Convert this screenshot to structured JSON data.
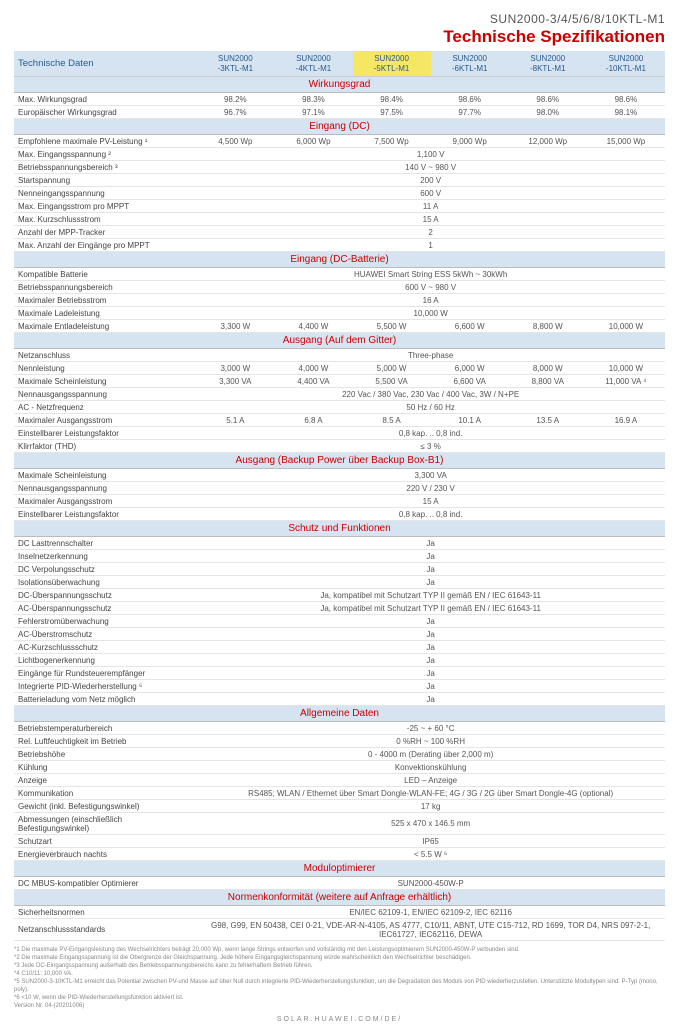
{
  "modelId": "SUN2000-3/4/5/6/8/10KTL-M1",
  "mainTitle": "Technische Spezifikationen",
  "headerLabel": "Technische Daten",
  "highlightedCol": 2,
  "columns": [
    {
      "l1": "SUN2000",
      "l2": "-3KTL-M1"
    },
    {
      "l1": "SUN2000",
      "l2": "-4KTL-M1"
    },
    {
      "l1": "SUN2000",
      "l2": "-5KTL-M1"
    },
    {
      "l1": "SUN2000",
      "l2": "-6KTL-M1"
    },
    {
      "l1": "SUN2000",
      "l2": "-8KTL-M1"
    },
    {
      "l1": "SUN2000",
      "l2": "-10KTL-M1"
    }
  ],
  "sections": [
    {
      "title": "Wirkungsgrad",
      "rows": [
        {
          "label": "Max. Wirkungsgrad",
          "vals": [
            "98.2%",
            "98.3%",
            "98.4%",
            "98.6%",
            "98.6%",
            "98.6%"
          ]
        },
        {
          "label": "Europäischer Wirkungsgrad",
          "vals": [
            "96.7%",
            "97.1%",
            "97.5%",
            "97.7%",
            "98.0%",
            "98.1%"
          ]
        }
      ]
    },
    {
      "title": "Eingang (DC)",
      "rows": [
        {
          "label": "Empfohlene maximale PV-Leistung ¹",
          "vals": [
            "4,500 Wp",
            "6,000 Wp",
            "7,500 Wp",
            "9,000 Wp",
            "12,000 Wp",
            "15,000 Wp"
          ]
        },
        {
          "label": "Max. Eingangsspannung ²",
          "span": "1,100 V"
        },
        {
          "label": "Betriebsspannungsbereich ³",
          "span": "140 V ~ 980 V"
        },
        {
          "label": "Startspannung",
          "span": "200 V"
        },
        {
          "label": "Nenneingangsspannung",
          "span": "600 V"
        },
        {
          "label": "Max. Eingangsstrom pro MPPT",
          "span": "11 A"
        },
        {
          "label": "Max. Kurzschlussstrom",
          "span": "15 A"
        },
        {
          "label": "Anzahl der MPP-Tracker",
          "span": "2"
        },
        {
          "label": "Max. Anzahl der Eingänge pro MPPT",
          "span": "1"
        }
      ]
    },
    {
      "title": "Eingang (DC-Batterie)",
      "rows": [
        {
          "label": "Kompatible Batterie",
          "span": "HUAWEI Smart String ESS 5kWh ~ 30kWh"
        },
        {
          "label": "Betriebsspannungsbereich",
          "span": "600 V ~ 980 V"
        },
        {
          "label": "Maximaler Betriebsstrom",
          "span": "16 A"
        },
        {
          "label": "Maximale Ladeleistung",
          "span": "10,000 W"
        },
        {
          "label": "Maximale Entladeleistung",
          "vals": [
            "3,300 W",
            "4,400 W",
            "5,500 W",
            "6,600 W",
            "8,800 W",
            "10,000 W"
          ]
        }
      ]
    },
    {
      "title": "Ausgang (Auf dem Gitter)",
      "rows": [
        {
          "label": "Netzanschluss",
          "span": "Three-phase"
        },
        {
          "label": "Nennleistung",
          "vals": [
            "3,000 W",
            "4,000 W",
            "5,000 W",
            "6,000 W",
            "8,000 W",
            "10,000 W"
          ]
        },
        {
          "label": "Maximale Scheinleistung",
          "vals": [
            "3,300 VA",
            "4,400 VA",
            "5,500 VA",
            "6,600 VA",
            "8,800 VA",
            "11,000 VA ⁴"
          ]
        },
        {
          "label": "Nennausgangsspannung",
          "span": "220 Vac / 380 Vac, 230 Vac / 400 Vac, 3W / N+PE"
        },
        {
          "label": "AC - Netzfrequenz",
          "span": "50 Hz / 60 Hz"
        },
        {
          "label": "Maximaler Ausgangsstrom",
          "vals": [
            "5.1 A",
            "6.8 A",
            "8.5 A",
            "10.1 A",
            "13.5 A",
            "16.9 A"
          ]
        },
        {
          "label": "Einstellbarer Leistungsfaktor",
          "span": "0,8 kap. .. 0,8 ind."
        },
        {
          "label": "Klirrfaktor (THD)",
          "span": "≤ 3 %"
        }
      ]
    },
    {
      "title": "Ausgang (Backup Power über Backup Box-B1)",
      "rows": [
        {
          "label": "Maximale Scheinleistung",
          "span": "3,300 VA"
        },
        {
          "label": "Nennausgangsspannung",
          "span": "220 V / 230 V"
        },
        {
          "label": "Maximaler Ausgangsstrom",
          "span": "15 A"
        },
        {
          "label": "Einstellbarer Leistungsfaktor",
          "span": "0,8 kap. .. 0,8 ind."
        }
      ]
    },
    {
      "title": "Schutz und Funktionen",
      "rows": [
        {
          "label": "DC Lasttrennschalter",
          "span": "Ja"
        },
        {
          "label": "Inselnetzerkennung",
          "span": "Ja"
        },
        {
          "label": "DC Verpolungsschutz",
          "span": "Ja"
        },
        {
          "label": "Isolationsüberwachung",
          "span": "Ja"
        },
        {
          "label": "DC-Überspannungsschutz",
          "span": "Ja, kompatibel mit Schutzart TYP II gemäß EN / IEC 61643-11"
        },
        {
          "label": "AC-Überspannungsschutz",
          "span": "Ja, kompatibel mit Schutzart TYP II gemäß EN / IEC 61643-11"
        },
        {
          "label": "Fehlerstromüberwachung",
          "span": "Ja"
        },
        {
          "label": "AC-Überstromschutz",
          "span": "Ja"
        },
        {
          "label": "AC-Kurzschlussschutz",
          "span": "Ja"
        },
        {
          "label": "Lichtbogenerkennung",
          "span": "Ja"
        },
        {
          "label": "Eingänge für Rundsteuerempfänger",
          "span": "Ja"
        },
        {
          "label": "Integrierte PID-Wiederherstellung ⁵",
          "span": "Ja"
        },
        {
          "label": "Batterieladung vom Netz möglich",
          "span": "Ja"
        }
      ]
    },
    {
      "title": "Allgemeine Daten",
      "rows": [
        {
          "label": "Betriebstemperaturbereich",
          "span": "-25 ~ + 60 °C"
        },
        {
          "label": "Rel. Luftfeuchtigkeit im Betrieb",
          "span": "0 %RH ~ 100 %RH"
        },
        {
          "label": "Betriebshöhe",
          "span": "0 - 4000 m (Derating über 2,000 m)"
        },
        {
          "label": "Kühlung",
          "span": "Konvektionskühlung"
        },
        {
          "label": "Anzeige",
          "span": "LED – Anzeige"
        },
        {
          "label": "Kommunikation",
          "span": "RS485; WLAN / Ethernet über Smart Dongle-WLAN-FE; 4G / 3G / 2G über Smart Dongle-4G (optional)"
        },
        {
          "label": "Gewicht (inkl. Befestigungswinkel)",
          "span": "17 kg"
        },
        {
          "label": "Abmessungen (einschließlich Befestigungswinkel)",
          "span": "525 x 470 x 146.5 mm"
        },
        {
          "label": "Schutzart",
          "span": "IP65"
        },
        {
          "label": "Energieverbrauch nachts",
          "span": "< 5.5 W ⁶"
        }
      ]
    },
    {
      "title": "Moduloptimierer",
      "rows": [
        {
          "label": "DC MBUS-kompatibler Optimierer",
          "span": "SUN2000-450W-P"
        }
      ]
    },
    {
      "title": "Normenkonformität (weitere auf Anfrage erhältlich)",
      "rows": [
        {
          "label": "Sicherheitsnormen",
          "span": "EN/IEC 62109-1, EN/IEC 62109-2, IEC 62116"
        },
        {
          "label": "Netzanschlussstandards",
          "span": "G98, G99, EN 50438, CEI 0-21, VDE-AR-N-4105, AS 4777, C10/11, ABNT, UTE C15-712, RD 1699, TOR D4, NRS 097-2-1, IEC61727, IEC62116, DEWA"
        }
      ]
    }
  ],
  "footnotes": [
    "*1 Die maximale PV-Eingangsleistung des Wechselrichters beträgt 20,000 Wp, wenn lange Strings entworfen und vollständig mit den Leistungsoptimierern SUN2000-450W-P verbunden sind.",
    "*2 Die maximale Eingangsspannung ist die Obergrenze der Gleichspannung. Jede höhere Eingangsgleichspannung würde wahrscheinlich den Wechselrichter beschädigen.",
    "*3 Jede DC-Eingangsspannung außerhalb des Betriebsspannungsbereichs kann zu fehlerhaftem Betrieb führen.",
    "*4 C10/11: 10,000 VA.",
    "*5 SUN2000-3-10KTL-M1 erreicht das Potential zwischen PV-und Masse auf über Null durch integrierte PID-Wiederherstellungsfunktion, um die Degradation des Moduls von PID wiederherzustellen. Unterstützte Modultypen sind: P-Typ (mono, poly).",
    "*6 <10 W, wenn die PID-Wiederherstellungsfunktion aktiviert ist.",
    "Version Nr. 04-(20201006)"
  ],
  "footerUrl": "SOLAR.HUAWEI.COM/DE/"
}
